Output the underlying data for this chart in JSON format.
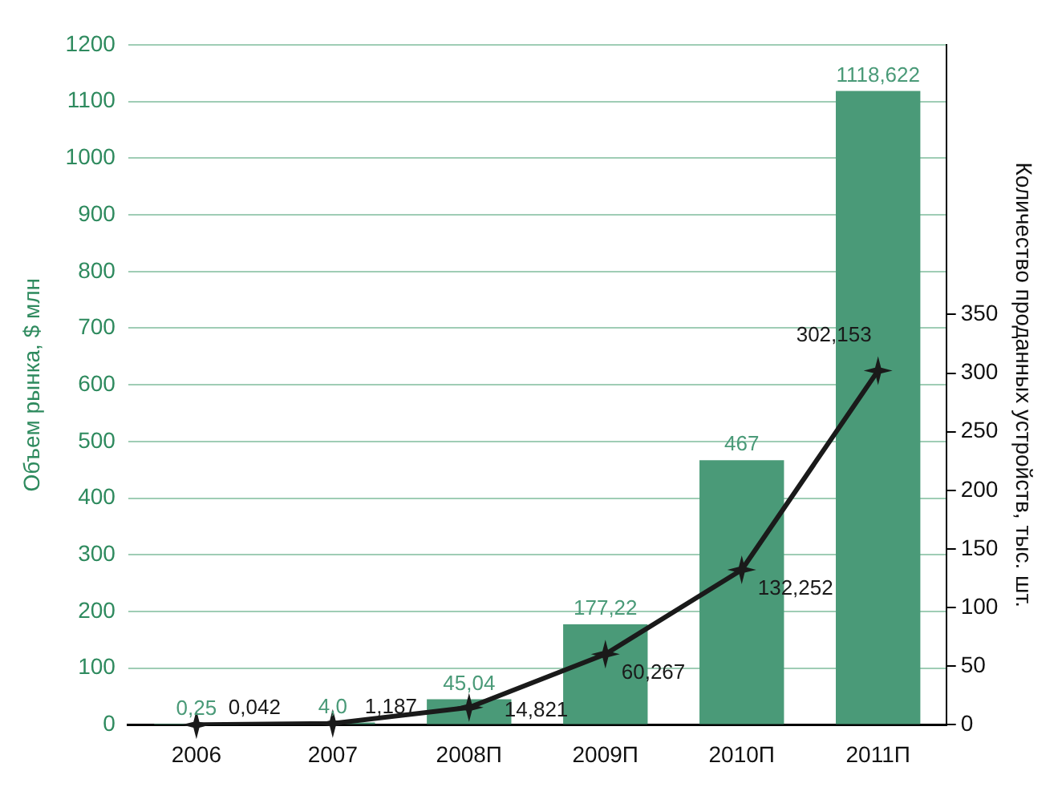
{
  "chart_data": {
    "type": "bar",
    "ylabel": "Объем рынка, $ млн",
    "y2label": "Количество проданных устройств, тыс. шт.",
    "categories": [
      "2006",
      "2007",
      "2008П",
      "2009П",
      "2010П",
      "2011П"
    ],
    "series": [
      {
        "color": "#4a9a78",
        "values": [
          0.25,
          4.0,
          45.04,
          177.22,
          467,
          1118.622
        ],
        "value_labels": [
          "0,25",
          "4,0",
          "45,04",
          "177,22",
          "467",
          "1118,622"
        ]
      },
      {
        "type": "line",
        "axis": "y2",
        "color": "#1a1a1a",
        "marker": "star",
        "values": [
          0.042,
          1.187,
          14.821,
          60.267,
          132.252,
          302.153
        ],
        "value_labels": [
          "0,042",
          "1,187",
          "14,821",
          "60,267",
          "132,252",
          "302,153"
        ]
      }
    ],
    "ylim": [
      0,
      1200
    ],
    "yticks": [
      0,
      100,
      200,
      300,
      400,
      500,
      600,
      700,
      800,
      900,
      1000,
      1100,
      1200
    ],
    "y2lim": [
      0,
      580
    ],
    "y2ticks": [
      0,
      50,
      100,
      150,
      200,
      250,
      300,
      350
    ],
    "grid": "y",
    "legend": false
  }
}
